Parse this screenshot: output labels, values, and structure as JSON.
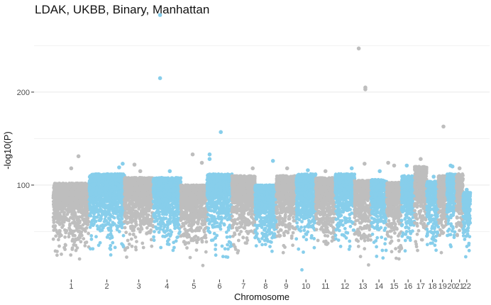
{
  "chart_data": {
    "type": "scatter",
    "title": "LDAK, UKBB, Binary, Manhattan",
    "xlabel": "Chromosome",
    "ylabel": "-log10(P)",
    "ylim": [
      0,
      280
    ],
    "y_ticks": [
      100,
      200
    ],
    "grid": true,
    "legend": "none",
    "colors": {
      "odd": "#bebebe",
      "even": "#87ceeb",
      "grid": "#ebebeb"
    },
    "chromosomes": [
      {
        "label": "1",
        "rel_size": 248
      },
      {
        "label": "2",
        "rel_size": 242
      },
      {
        "label": "3",
        "rel_size": 198
      },
      {
        "label": "4",
        "rel_size": 190
      },
      {
        "label": "5",
        "rel_size": 181
      },
      {
        "label": "6",
        "rel_size": 171
      },
      {
        "label": "7",
        "rel_size": 159
      },
      {
        "label": "8",
        "rel_size": 145
      },
      {
        "label": "9",
        "rel_size": 138
      },
      {
        "label": "10",
        "rel_size": 134
      },
      {
        "label": "11",
        "rel_size": 135
      },
      {
        "label": "12",
        "rel_size": 133
      },
      {
        "label": "13",
        "rel_size": 114
      },
      {
        "label": "14",
        "rel_size": 107
      },
      {
        "label": "15",
        "rel_size": 102
      },
      {
        "label": "16",
        "rel_size": 90
      },
      {
        "label": "17",
        "rel_size": 83
      },
      {
        "label": "18",
        "rel_size": 80
      },
      {
        "label": "19",
        "rel_size": 59
      },
      {
        "label": "20",
        "rel_size": 64
      },
      {
        "label": "21",
        "rel_size": 47
      },
      {
        "label": "22",
        "rel_size": 51
      }
    ],
    "typical_peak": [
      102,
      112,
      108,
      108,
      100,
      112,
      110,
      100,
      110,
      112,
      108,
      112,
      105,
      106,
      103,
      110,
      120,
      104,
      110,
      112,
      112,
      92
    ],
    "top_hits": [
      {
        "chromosome": "1",
        "pos": 0.7,
        "value": 131
      },
      {
        "chromosome": "1",
        "pos": 0.5,
        "value": 118
      },
      {
        "chromosome": "2",
        "pos": 0.95,
        "value": 123
      },
      {
        "chromosome": "2",
        "pos": 0.85,
        "value": 119
      },
      {
        "chromosome": "3",
        "pos": 0.35,
        "value": 122
      },
      {
        "chromosome": "3",
        "pos": 0.55,
        "value": 115
      },
      {
        "chromosome": "4",
        "pos": 0.25,
        "value": 283
      },
      {
        "chromosome": "4",
        "pos": 0.25,
        "value": 215
      },
      {
        "chromosome": "4",
        "pos": 0.6,
        "value": 115
      },
      {
        "chromosome": "5",
        "pos": 0.45,
        "value": 133
      },
      {
        "chromosome": "5",
        "pos": 0.8,
        "value": 124
      },
      {
        "chromosome": "6",
        "pos": 0.1,
        "value": 133
      },
      {
        "chromosome": "6",
        "pos": 0.1,
        "value": 128
      },
      {
        "chromosome": "6",
        "pos": 0.55,
        "value": 157
      },
      {
        "chromosome": "7",
        "pos": 0.9,
        "value": 118
      },
      {
        "chromosome": "8",
        "pos": 0.85,
        "value": 126
      },
      {
        "chromosome": "9",
        "pos": 0.55,
        "value": 118
      },
      {
        "chromosome": "10",
        "pos": 0.6,
        "value": 116
      },
      {
        "chromosome": "11",
        "pos": 0.5,
        "value": 115
      },
      {
        "chromosome": "12",
        "pos": 0.85,
        "value": 118
      },
      {
        "chromosome": "13",
        "pos": 0.25,
        "value": 247
      },
      {
        "chromosome": "13",
        "pos": 0.65,
        "value": 205
      },
      {
        "chromosome": "13",
        "pos": 0.65,
        "value": 203
      },
      {
        "chromosome": "13",
        "pos": 0.6,
        "value": 123
      },
      {
        "chromosome": "14",
        "pos": 0.55,
        "value": 115
      },
      {
        "chromosome": "15",
        "pos": 0.1,
        "value": 124
      },
      {
        "chromosome": "15",
        "pos": 0.5,
        "value": 121
      },
      {
        "chromosome": "16",
        "pos": 0.4,
        "value": 121
      },
      {
        "chromosome": "17",
        "pos": 0.5,
        "value": 128
      },
      {
        "chromosome": "18",
        "pos": 0.6,
        "value": 109
      },
      {
        "chromosome": "19",
        "pos": 0.6,
        "value": 163
      },
      {
        "chromosome": "20",
        "pos": 0.4,
        "value": 121
      },
      {
        "chromosome": "20",
        "pos": 0.6,
        "value": 120
      },
      {
        "chromosome": "21",
        "pos": 0.5,
        "value": 118
      },
      {
        "chromosome": "22",
        "pos": 0.5,
        "value": 95
      }
    ]
  }
}
